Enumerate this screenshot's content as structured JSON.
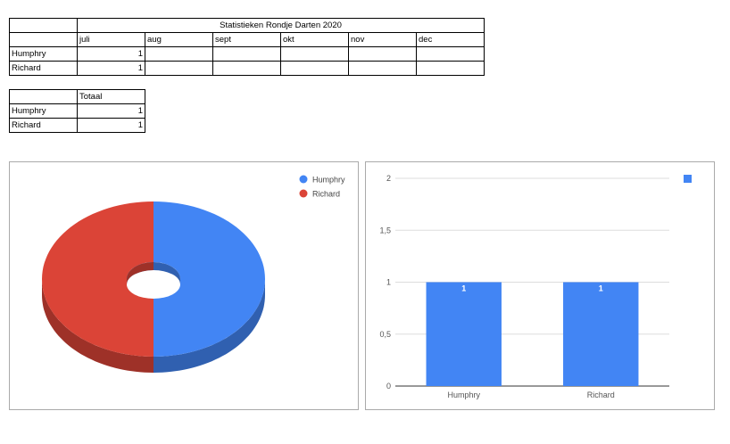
{
  "stats_table": {
    "title": "Statistieken Rondje Darten 2020",
    "months": [
      "juli",
      "aug",
      "sept",
      "okt",
      "nov",
      "dec"
    ],
    "rows": [
      {
        "name": "Humphry",
        "values": [
          "1",
          "",
          "",
          "",
          "",
          ""
        ]
      },
      {
        "name": "Richard",
        "values": [
          "1",
          "",
          "",
          "",
          "",
          ""
        ]
      }
    ]
  },
  "total_table": {
    "header": "Totaal",
    "rows": [
      {
        "name": "Humphry",
        "value": "1"
      },
      {
        "name": "Richard",
        "value": "1"
      }
    ]
  },
  "chart_data": [
    {
      "type": "pie",
      "style": "3d-donut",
      "labels": [
        "Humphry",
        "Richard"
      ],
      "values": [
        1,
        1
      ],
      "colors": [
        "#4285f4",
        "#db4437"
      ],
      "legend": "right"
    },
    {
      "type": "bar",
      "categories": [
        "Humphry",
        "Richard"
      ],
      "values": [
        1,
        1
      ],
      "data_labels": [
        "1",
        "1"
      ],
      "ylim": [
        0,
        2
      ],
      "yticks": [
        "0",
        "0,5",
        "1",
        "1,5",
        "2"
      ],
      "color": "#4285f4",
      "grid": true,
      "legend": "top-right"
    }
  ]
}
